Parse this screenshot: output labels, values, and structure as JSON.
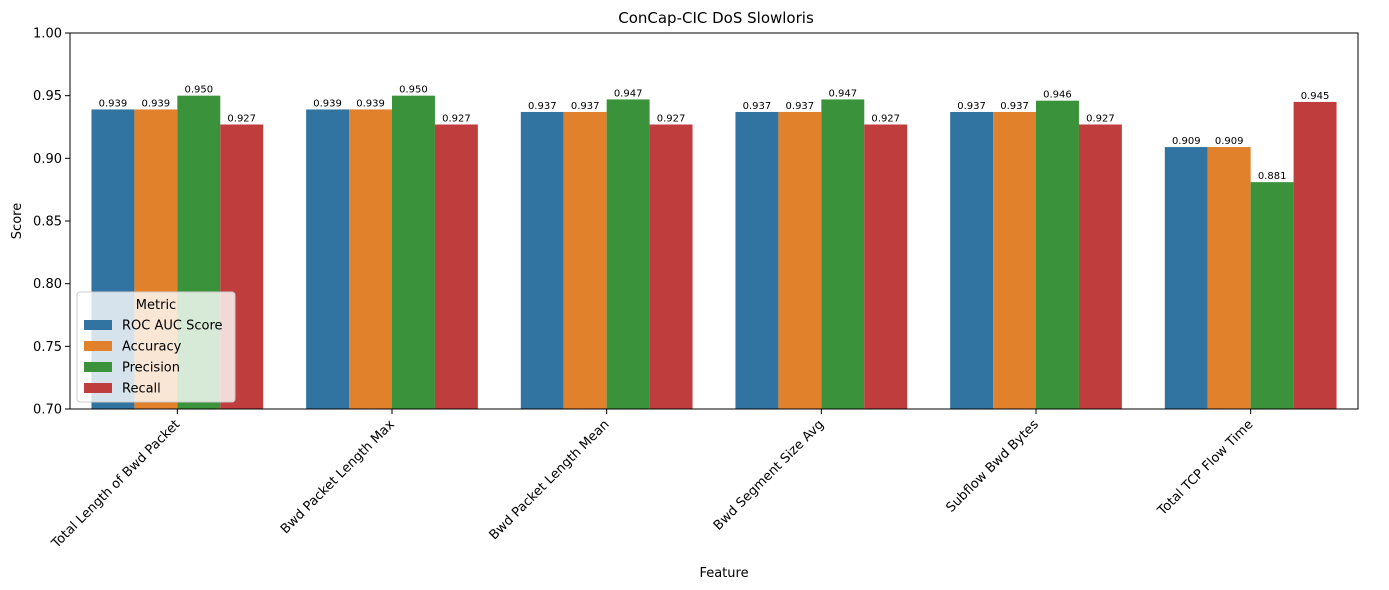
{
  "chart_data": {
    "type": "bar",
    "title": "ConCap-CIC DoS Slowloris",
    "xlabel": "Feature",
    "ylabel": "Score",
    "ylim": [
      0.7,
      1.0
    ],
    "yticks": [
      "0.70",
      "0.75",
      "0.80",
      "0.85",
      "0.90",
      "0.95",
      "1.00"
    ],
    "grid": false,
    "legend": {
      "title": "Metric",
      "placement": "lower-left"
    },
    "categories": [
      "Total Length of Bwd Packet",
      "Bwd Packet Length Max",
      "Bwd Packet Length Mean",
      "Bwd Segment Size Avg",
      "Subflow Bwd Bytes",
      "Total TCP Flow Time"
    ],
    "series": [
      {
        "name": "ROC AUC Score",
        "color": "#3274a1",
        "values": [
          0.939,
          0.939,
          0.937,
          0.937,
          0.937,
          0.909
        ],
        "labels": [
          "0.939",
          "0.939",
          "0.937",
          "0.937",
          "0.937",
          "0.909"
        ]
      },
      {
        "name": "Accuracy",
        "color": "#e1812c",
        "values": [
          0.939,
          0.939,
          0.937,
          0.937,
          0.937,
          0.909
        ],
        "labels": [
          "0.939",
          "0.939",
          "0.937",
          "0.937",
          "0.937",
          "0.909"
        ]
      },
      {
        "name": "Precision",
        "color": "#3a923a",
        "values": [
          0.95,
          0.95,
          0.947,
          0.947,
          0.946,
          0.881
        ],
        "labels": [
          "0.950",
          "0.950",
          "0.947",
          "0.947",
          "0.946",
          "0.881"
        ]
      },
      {
        "name": "Recall",
        "color": "#c03d3e",
        "values": [
          0.927,
          0.927,
          0.927,
          0.927,
          0.927,
          0.945
        ],
        "labels": [
          "0.927",
          "0.927",
          "0.927",
          "0.927",
          "0.927",
          "0.945"
        ]
      }
    ]
  }
}
